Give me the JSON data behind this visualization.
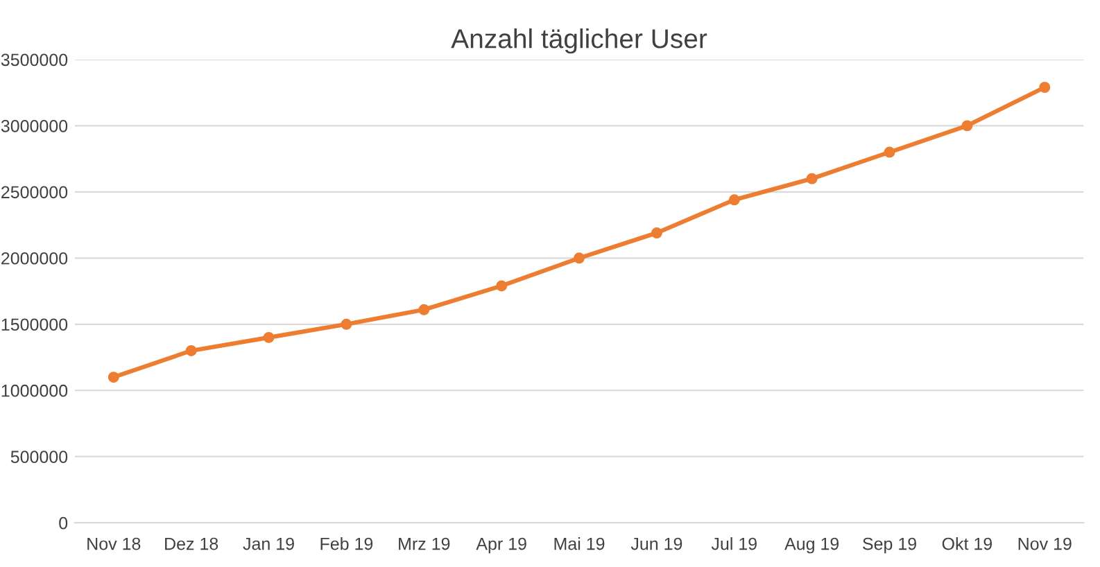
{
  "chart_data": {
    "type": "line",
    "title": "Anzahl täglicher User",
    "categories": [
      "Nov 18",
      "Dez 18",
      "Jan 19",
      "Feb 19",
      "Mrz 19",
      "Apr 19",
      "Mai 19",
      "Jun 19",
      "Jul 19",
      "Aug 19",
      "Sep 19",
      "Okt 19",
      "Nov 19"
    ],
    "series": [
      {
        "color": "#ed7d31",
        "values": [
          1100000,
          1300000,
          1400000,
          1500000,
          1610000,
          1790000,
          2000000,
          2190000,
          2440000,
          2600000,
          2800000,
          3000000,
          3290000
        ]
      }
    ],
    "ylim": [
      0,
      3500000
    ],
    "yticks": [
      0,
      500000,
      1000000,
      1500000,
      2000000,
      2500000,
      3000000,
      3500000
    ],
    "grid": "y",
    "marker": "circle",
    "line_style": "solid"
  }
}
